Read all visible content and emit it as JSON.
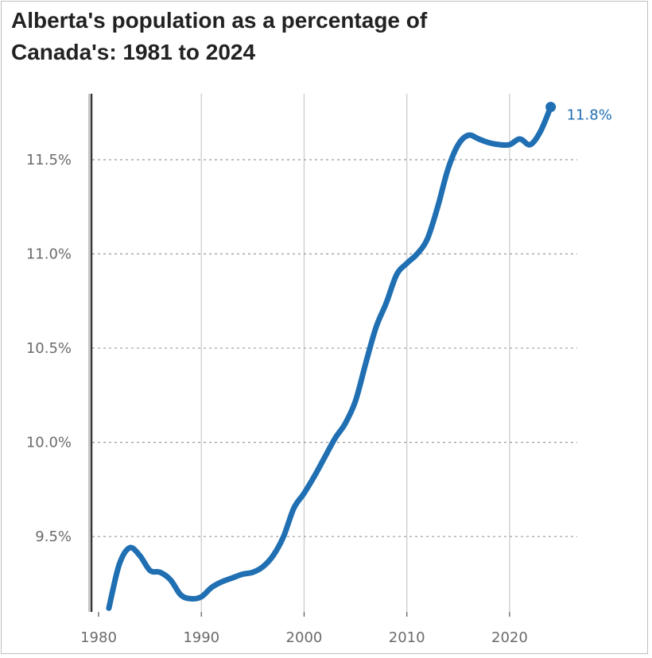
{
  "chart_data": {
    "type": "line",
    "title": "Alberta's population as a percentage of Canada's: 1981 to 2024",
    "title_lines": [
      "Alberta's population as a percentage of",
      "Canada's: 1981 to 2024"
    ],
    "xlabel": "",
    "ylabel": "",
    "xlim": [
      1980,
      2025.5
    ],
    "ylim": [
      9.1,
      11.85
    ],
    "x_ticks": [
      1980,
      1990,
      2000,
      2010,
      2020
    ],
    "x_tick_labels": [
      "1980",
      "1990",
      "2000",
      "2010",
      "2020"
    ],
    "y_ticks": [
      9.5,
      10.0,
      10.5,
      11.0,
      11.5
    ],
    "y_tick_labels": [
      "9.5%",
      "10.0%",
      "10.5%",
      "11.0%",
      "11.5%"
    ],
    "grid": true,
    "line_color": "#1f6fb2",
    "end_label": "11.8%",
    "series": [
      {
        "x": [
          1981,
          1982,
          1983,
          1984,
          1985,
          1986,
          1987,
          1988,
          1989,
          1990,
          1991,
          1992,
          1993,
          1994,
          1995,
          1996,
          1997,
          1998,
          1999,
          2000,
          2001,
          2002,
          2003,
          2004,
          2005,
          2006,
          2007,
          2008,
          2009,
          2010,
          2011,
          2012,
          2013,
          2014,
          2015,
          2016,
          2017,
          2018,
          2019,
          2020,
          2021,
          2022,
          2023,
          2024
        ],
        "y": [
          9.12,
          9.35,
          9.44,
          9.4,
          9.32,
          9.31,
          9.27,
          9.19,
          9.17,
          9.18,
          9.23,
          9.26,
          9.28,
          9.3,
          9.31,
          9.34,
          9.4,
          9.5,
          9.65,
          9.73,
          9.82,
          9.92,
          10.02,
          10.1,
          10.22,
          10.42,
          10.61,
          10.74,
          10.89,
          10.95,
          11.0,
          11.08,
          11.25,
          11.45,
          11.58,
          11.63,
          11.61,
          11.59,
          11.58,
          11.58,
          11.61,
          11.58,
          11.65,
          11.78
        ]
      }
    ]
  }
}
